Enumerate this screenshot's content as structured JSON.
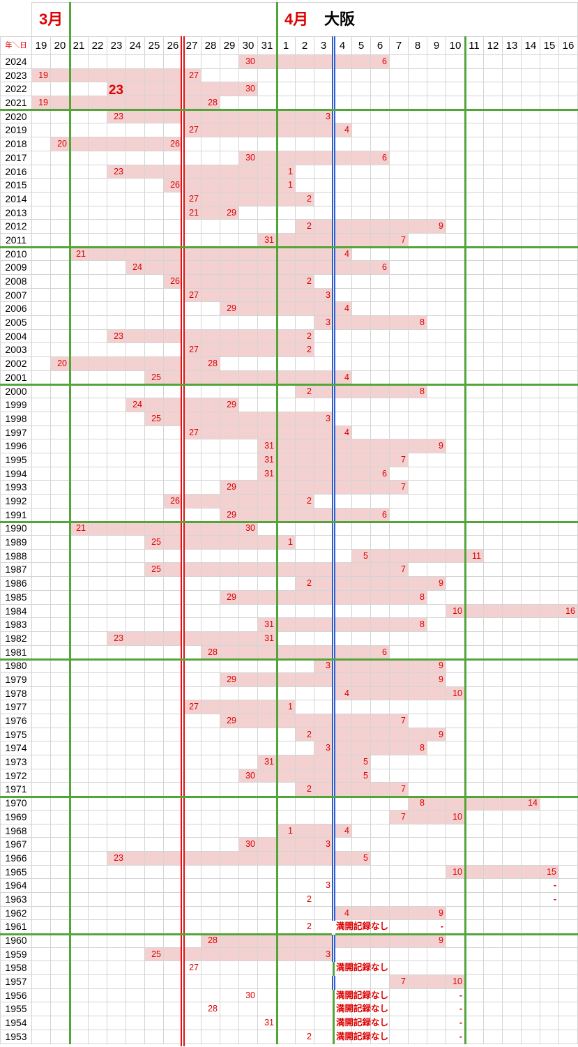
{
  "title": {
    "march": "3月",
    "april": "4月",
    "city": "大阪",
    "corner": "年＼日"
  },
  "columns": {
    "march_days": [
      "19",
      "20",
      "21",
      "22",
      "23",
      "24",
      "25",
      "26",
      "27",
      "28",
      "29",
      "30",
      "31"
    ],
    "april_days": [
      "1",
      "2",
      "3",
      "4",
      "5",
      "6",
      "7",
      "8",
      "9",
      "10",
      "11",
      "12",
      "13",
      "14",
      "15",
      "16"
    ]
  },
  "colors": {
    "bar_pink": "#f3d1d1",
    "red_text": "#dd0000",
    "green_line": "#53a53a",
    "blue_line": "#2f5fce",
    "red_line": "#e01010",
    "gridline": "#d4d4d4"
  },
  "note_text": "満開記録なし",
  "dash_text": "-",
  "markers": {
    "vertical": [
      {
        "after": "3/20",
        "color": "green",
        "from_top": true
      },
      {
        "after": "3/26",
        "color": "red-double",
        "from_top": false
      },
      {
        "after": "3/31",
        "color": "green",
        "from_top": true
      },
      {
        "after": "4/3",
        "color": "blue-double",
        "from_top": false
      },
      {
        "after": "4/10",
        "color": "green",
        "from_top": false
      }
    ],
    "blue_overrides": [
      {
        "year": "1961",
        "style": "gap"
      },
      {
        "year": "1958",
        "style": "green"
      },
      {
        "year": "1956",
        "style": "green"
      },
      {
        "year": "1955",
        "style": "green"
      },
      {
        "year": "1954",
        "style": "green"
      },
      {
        "year": "1953",
        "style": "green"
      }
    ],
    "horizontal_after_years": [
      "2021",
      "2011",
      "2001",
      "1991",
      "1981",
      "1971",
      "1961"
    ]
  },
  "chart_data": {
    "type": "gantt",
    "title": "大阪 桜 開花〜満開 (Osaka cherry blossom: flowering to full bloom, by year)",
    "x_axis": "March 19 – April 16",
    "rows": [
      {
        "year": "2024",
        "start": "3/30",
        "full_bloom": "4/6"
      },
      {
        "year": "2023",
        "start": "3/19",
        "full_bloom": "3/27"
      },
      {
        "year": "2022",
        "start": "3/23",
        "full_bloom": "3/30",
        "big_start_label": true
      },
      {
        "year": "2021",
        "start": "3/19",
        "full_bloom": "3/28"
      },
      {
        "year": "2020",
        "start": "3/23",
        "full_bloom": "4/3"
      },
      {
        "year": "2019",
        "start": "3/27",
        "full_bloom": "4/4"
      },
      {
        "year": "2018",
        "start": "3/20",
        "full_bloom": "3/26"
      },
      {
        "year": "2017",
        "start": "3/30",
        "full_bloom": "4/6"
      },
      {
        "year": "2016",
        "start": "3/23",
        "full_bloom": "4/1"
      },
      {
        "year": "2015",
        "start": "3/26",
        "full_bloom": "4/1"
      },
      {
        "year": "2014",
        "start": "3/27",
        "full_bloom": "4/2"
      },
      {
        "year": "2013",
        "start": "3/21",
        "full_bloom": "3/29",
        "bar_start": "3/27"
      },
      {
        "year": "2012",
        "start": "4/2",
        "full_bloom": "4/9"
      },
      {
        "year": "2011",
        "start": "3/31",
        "full_bloom": "4/7"
      },
      {
        "year": "2010",
        "start": "3/21",
        "full_bloom": "4/4"
      },
      {
        "year": "2009",
        "start": "3/24",
        "full_bloom": "4/6"
      },
      {
        "year": "2008",
        "start": "3/26",
        "full_bloom": "4/2"
      },
      {
        "year": "2007",
        "start": "3/27",
        "full_bloom": "4/3"
      },
      {
        "year": "2006",
        "start": "3/29",
        "full_bloom": "4/4"
      },
      {
        "year": "2005",
        "start": "4/3",
        "full_bloom": "4/8"
      },
      {
        "year": "2004",
        "start": "3/23",
        "full_bloom": "4/2"
      },
      {
        "year": "2003",
        "start": "3/27",
        "full_bloom": "4/2"
      },
      {
        "year": "2002",
        "start": "3/20",
        "full_bloom": "3/28"
      },
      {
        "year": "2001",
        "start": "3/25",
        "full_bloom": "4/4"
      },
      {
        "year": "2000",
        "start": "4/2",
        "full_bloom": "4/8"
      },
      {
        "year": "1999",
        "start": "3/24",
        "full_bloom": "3/29"
      },
      {
        "year": "1998",
        "start": "3/25",
        "full_bloom": "4/3"
      },
      {
        "year": "1997",
        "start": "3/27",
        "full_bloom": "4/4"
      },
      {
        "year": "1996",
        "start": "3/31",
        "full_bloom": "4/9"
      },
      {
        "year": "1995",
        "start": "3/31",
        "full_bloom": "4/7"
      },
      {
        "year": "1994",
        "start": "3/31",
        "full_bloom": "4/6"
      },
      {
        "year": "1993",
        "start": "3/29",
        "full_bloom": "4/7"
      },
      {
        "year": "1992",
        "start": "3/26",
        "full_bloom": "4/2"
      },
      {
        "year": "1991",
        "start": "3/29",
        "full_bloom": "4/6"
      },
      {
        "year": "1990",
        "start": "3/21",
        "full_bloom": "3/30"
      },
      {
        "year": "1989",
        "start": "3/25",
        "full_bloom": "4/1"
      },
      {
        "year": "1988",
        "start": "4/5",
        "full_bloom": "4/11"
      },
      {
        "year": "1987",
        "start": "3/25",
        "full_bloom": "4/7"
      },
      {
        "year": "1986",
        "start": "4/2",
        "full_bloom": "4/9"
      },
      {
        "year": "1985",
        "start": "3/29",
        "full_bloom": "4/8"
      },
      {
        "year": "1984",
        "start": "4/10",
        "full_bloom": "4/16"
      },
      {
        "year": "1983",
        "start": "3/31",
        "full_bloom": "4/8"
      },
      {
        "year": "1982",
        "start": "3/23",
        "full_bloom": "3/31"
      },
      {
        "year": "1981",
        "start": "3/28",
        "full_bloom": "4/6"
      },
      {
        "year": "1980",
        "start": "4/3",
        "full_bloom": "4/9"
      },
      {
        "year": "1979",
        "start": "3/29",
        "full_bloom": "4/9"
      },
      {
        "year": "1978",
        "start": "4/4",
        "full_bloom": "4/10"
      },
      {
        "year": "1977",
        "start": "3/27",
        "full_bloom": "4/1"
      },
      {
        "year": "1976",
        "start": "3/29",
        "full_bloom": "4/7"
      },
      {
        "year": "1975",
        "start": "4/2",
        "full_bloom": "4/9"
      },
      {
        "year": "1974",
        "start": "4/3",
        "full_bloom": "4/8"
      },
      {
        "year": "1973",
        "start": "3/31",
        "full_bloom": "4/5"
      },
      {
        "year": "1972",
        "start": "3/30",
        "full_bloom": "4/5"
      },
      {
        "year": "1971",
        "start": "4/2",
        "full_bloom": "4/7"
      },
      {
        "year": "1970",
        "start": "4/8",
        "full_bloom": "4/14"
      },
      {
        "year": "1969",
        "start": "4/7",
        "full_bloom": "4/10"
      },
      {
        "year": "1968",
        "start": "4/1",
        "full_bloom": "4/4"
      },
      {
        "year": "1967",
        "start": "3/30",
        "full_bloom": "4/3"
      },
      {
        "year": "1966",
        "start": "3/23",
        "full_bloom": "4/5"
      },
      {
        "year": "1965",
        "start": "4/10",
        "full_bloom": "4/15"
      },
      {
        "year": "1964",
        "start": "4/3",
        "no_bar": true,
        "dash_at": "4/15"
      },
      {
        "year": "1963",
        "start": "4/2",
        "no_bar": true,
        "dash_at": "4/15"
      },
      {
        "year": "1962",
        "start": "4/4",
        "full_bloom": "4/9"
      },
      {
        "year": "1961",
        "start": "4/2",
        "no_bar": true,
        "note_at": "4/4",
        "dash_at": "4/9"
      },
      {
        "year": "1960",
        "start": "3/28",
        "full_bloom": "4/9"
      },
      {
        "year": "1959",
        "start": "3/25",
        "full_bloom": "4/3"
      },
      {
        "year": "1958",
        "start": "3/27",
        "no_bar": true,
        "note_at": "4/4"
      },
      {
        "year": "1957",
        "start": "4/7",
        "full_bloom": "4/10"
      },
      {
        "year": "1956",
        "start": "3/30",
        "no_bar": true,
        "note_at": "4/4",
        "dash_at": "4/10"
      },
      {
        "year": "1955",
        "start": "3/28",
        "no_bar": true,
        "note_at": "4/4",
        "dash_at": "4/10"
      },
      {
        "year": "1954",
        "start": "3/31",
        "no_bar": true,
        "note_at": "4/4",
        "dash_at": "4/10"
      },
      {
        "year": "1953",
        "start": "4/2",
        "no_bar": true,
        "note_at": "4/4",
        "dash_at": "4/10"
      }
    ]
  }
}
